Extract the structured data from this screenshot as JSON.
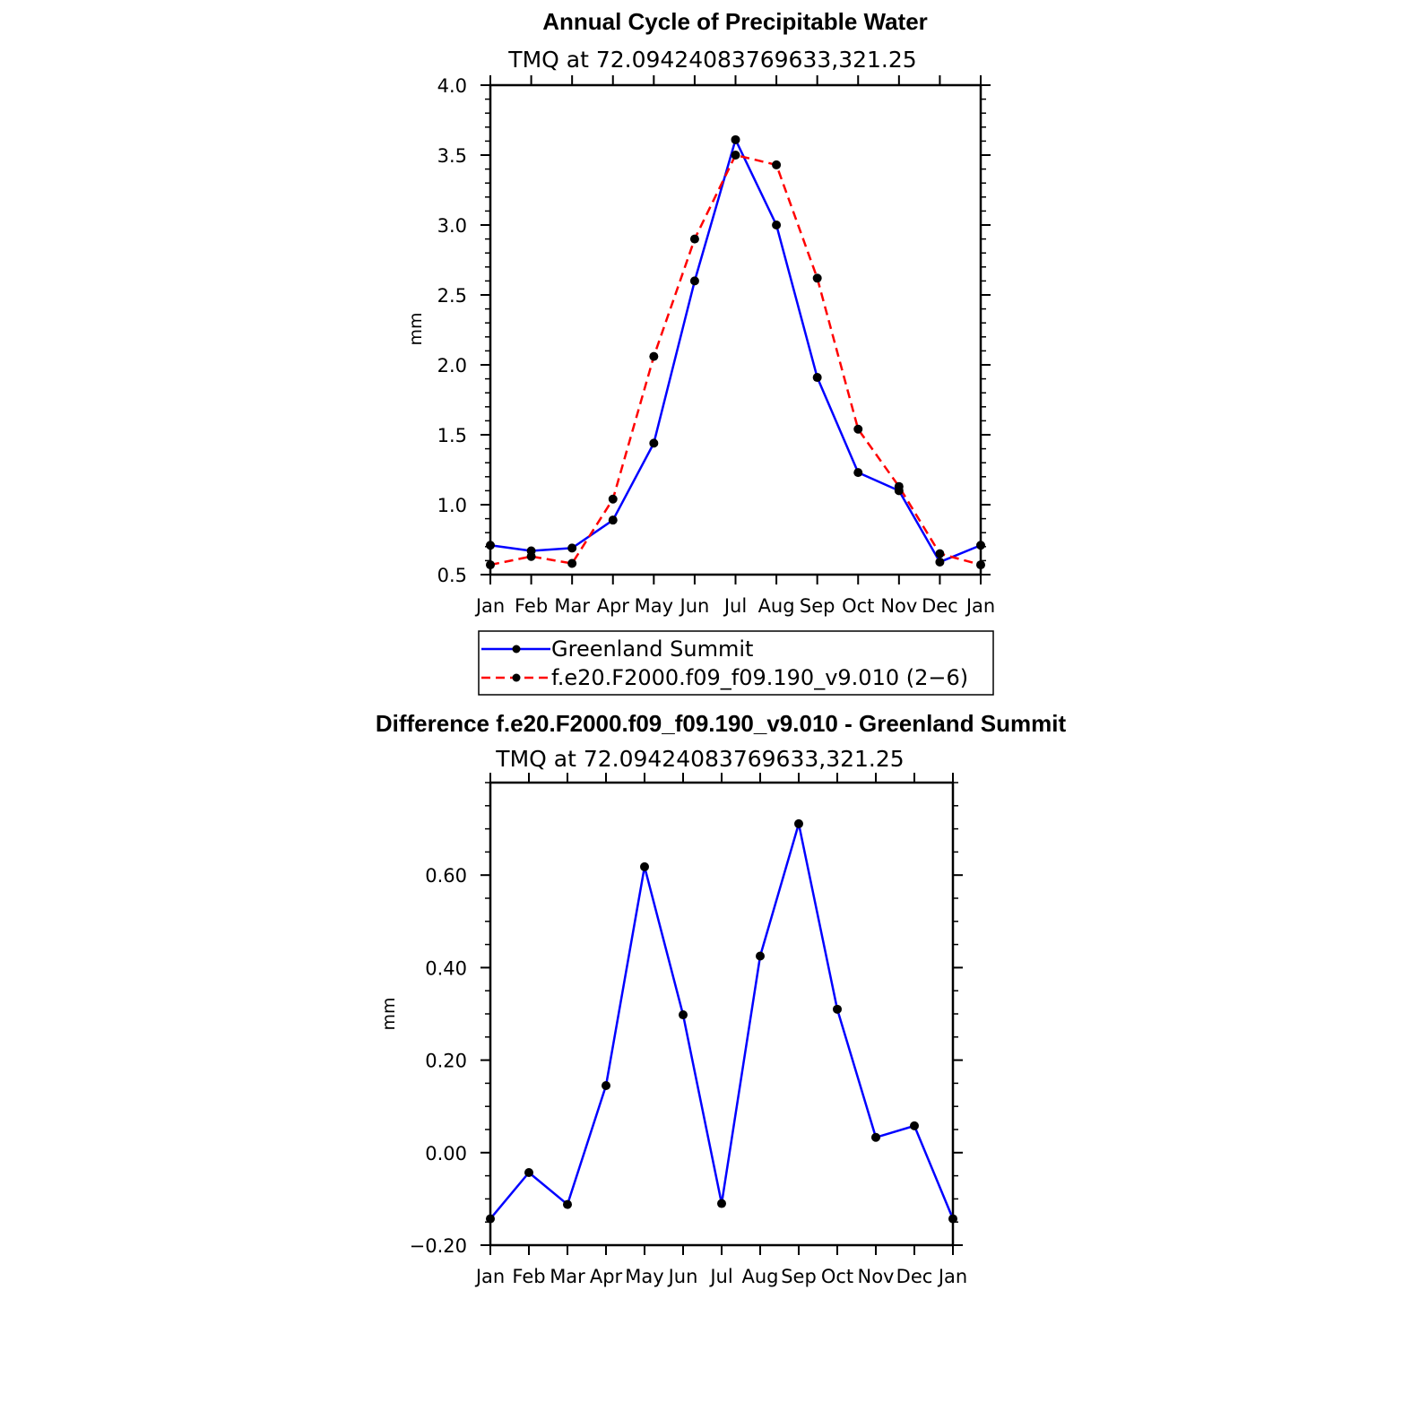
{
  "chart_data": [
    {
      "type": "line",
      "title": "Annual Cycle of Precipitable Water",
      "subtitle": "TMQ at 72.09424083769633,321.25",
      "xlabel": "",
      "ylabel": "mm",
      "categories": [
        "Jan",
        "Feb",
        "Mar",
        "Apr",
        "May",
        "Jun",
        "Jul",
        "Aug",
        "Sep",
        "Oct",
        "Nov",
        "Dec",
        "Jan"
      ],
      "yticks": [
        "0.5",
        "1.0",
        "1.5",
        "2.0",
        "2.5",
        "3.0",
        "3.5",
        "4.0"
      ],
      "ylim": [
        0.5,
        4.0
      ],
      "legend_position": "bottom",
      "series": [
        {
          "name": "Greenland Summit",
          "color": "#0000ff",
          "dash": "solid",
          "values": [
            0.71,
            0.67,
            0.69,
            0.89,
            1.44,
            2.6,
            3.61,
            3.0,
            1.91,
            1.23,
            1.1,
            0.59,
            0.71
          ]
        },
        {
          "name": "f.e20.F2000.f09_f09.190_v9.010 (2−6)",
          "color": "#ff0000",
          "dash": "dashed",
          "values": [
            0.57,
            0.63,
            0.58,
            1.04,
            2.06,
            2.9,
            3.5,
            3.43,
            2.62,
            1.54,
            1.13,
            0.65,
            0.57
          ]
        }
      ]
    },
    {
      "type": "line",
      "title": "Difference f.e20.F2000.f09_f09.190_v9.010 - Greenland Summit",
      "subtitle": "TMQ at 72.09424083769633,321.25",
      "xlabel": "",
      "ylabel": "mm",
      "categories": [
        "Jan",
        "Feb",
        "Mar",
        "Apr",
        "May",
        "Jun",
        "Jul",
        "Aug",
        "Sep",
        "Oct",
        "Nov",
        "Dec",
        "Jan"
      ],
      "yticks": [
        "−0.20",
        "0.00",
        "0.20",
        "0.40",
        "0.60"
      ],
      "ylim": [
        -0.2,
        0.8
      ],
      "series": [
        {
          "color": "#0000ff",
          "dash": "solid",
          "values": [
            -0.143,
            -0.043,
            -0.112,
            0.145,
            0.618,
            0.298,
            -0.11,
            0.425,
            0.711,
            0.31,
            0.033,
            0.058,
            -0.143
          ]
        }
      ]
    }
  ]
}
